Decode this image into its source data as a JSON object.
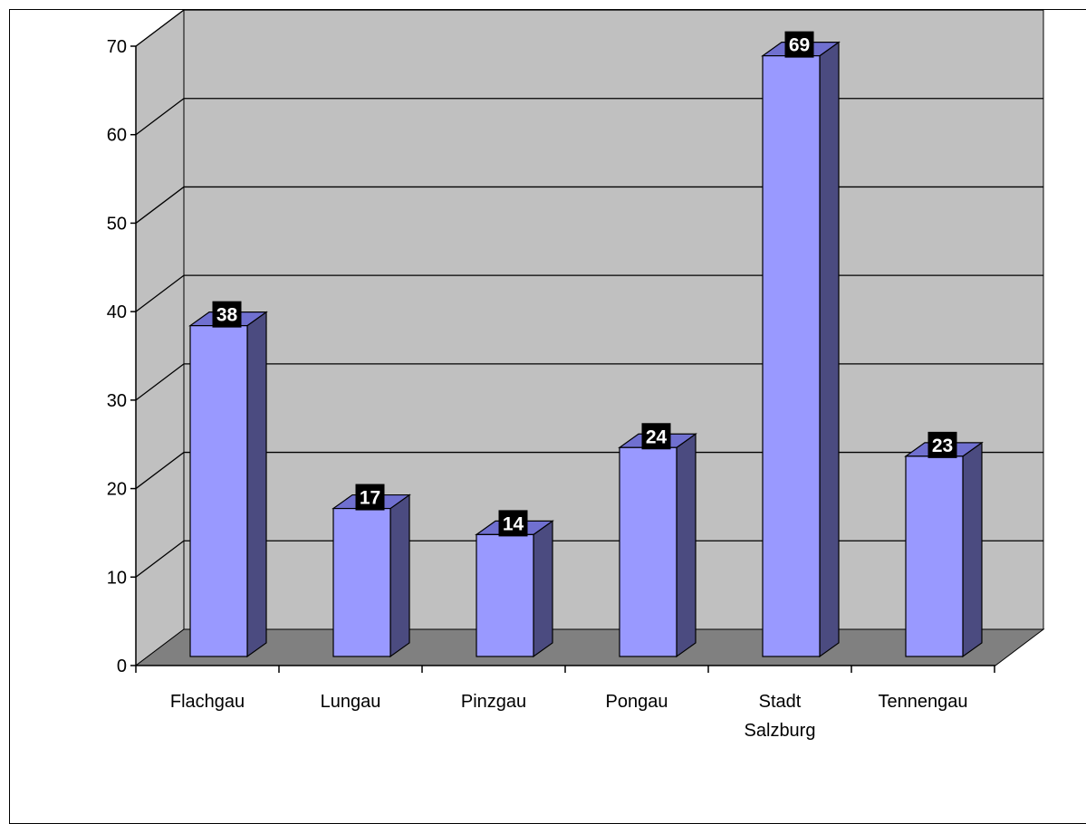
{
  "chart_data": {
    "type": "bar",
    "title": "",
    "xlabel": "",
    "ylabel": "",
    "categories": [
      "Flachgau",
      "Lungau",
      "Pinzgau",
      "Pongau",
      "Stadt Salzburg",
      "Tennengau"
    ],
    "category_lines": [
      [
        "Flachgau"
      ],
      [
        "Lungau"
      ],
      [
        "Pinzgau"
      ],
      [
        "Pongau"
      ],
      [
        "Stadt",
        "Salzburg"
      ],
      [
        "Tennengau"
      ]
    ],
    "values": [
      38,
      17,
      14,
      24,
      69,
      23
    ],
    "ylim": [
      0,
      70
    ],
    "yticks": [
      0,
      10,
      20,
      30,
      40,
      50,
      60,
      70
    ],
    "grid": true,
    "legend": "none",
    "style": "3d-clustered-column",
    "colors": {
      "bar_front": "#9999ff",
      "bar_side": "#4b4b80",
      "bar_top": "#7070d0",
      "wall": "#c0c0c0",
      "floor": "#808080",
      "label_bg": "#000000",
      "label_text": "#ffffff"
    }
  }
}
